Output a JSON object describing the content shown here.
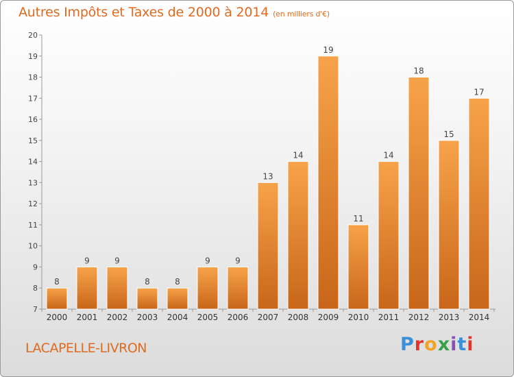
{
  "chart_data": {
    "type": "bar",
    "title": "Autres Impôts et Taxes de 2000 à 2014",
    "subtitle": "(en milliers d'€)",
    "xlabel": "",
    "ylabel": "",
    "categories": [
      "2000",
      "2001",
      "2002",
      "2003",
      "2004",
      "2005",
      "2006",
      "2007",
      "2008",
      "2009",
      "2010",
      "2011",
      "2012",
      "2013",
      "2014"
    ],
    "values": [
      8,
      9,
      9,
      8,
      8,
      9,
      9,
      13,
      14,
      19,
      11,
      14,
      18,
      15,
      17
    ],
    "ylim": [
      7,
      20
    ],
    "yticks": [
      7,
      8,
      9,
      10,
      11,
      12,
      13,
      14,
      15,
      16,
      17,
      18,
      19,
      20
    ],
    "grid": false,
    "bar_color_light": "#f7a34a",
    "bar_color_dark": "#c8661a"
  },
  "footer": {
    "commune": "LACAPELLE-LIVRON",
    "logo_text": "Proxiti"
  }
}
